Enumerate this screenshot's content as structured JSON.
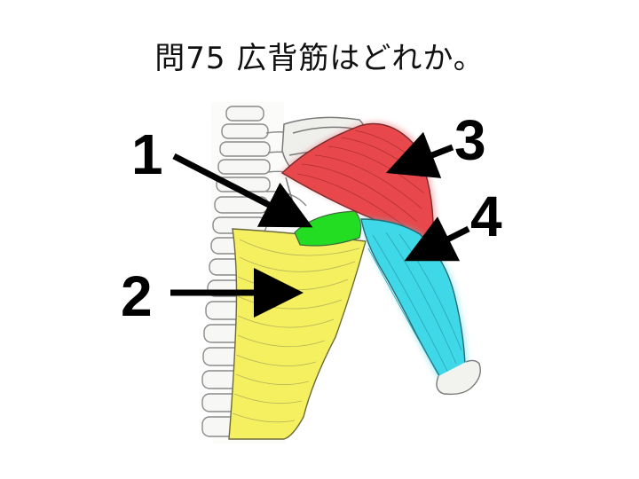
{
  "question": "問75 広背筋はどれか。",
  "labels": [
    {
      "id": "1",
      "text": "1"
    },
    {
      "id": "2",
      "text": "2"
    },
    {
      "id": "3",
      "text": "3"
    },
    {
      "id": "4",
      "text": "4"
    }
  ],
  "colors": {
    "region1": "#22dd22",
    "region2": "#f4f060",
    "region3": "#e8484c",
    "region4": "#3fd8e8",
    "arrow": "#000000",
    "sketch": "#8a8a8a"
  },
  "icons": [
    "spine-sketch",
    "scapula-sketch",
    "arrow-1",
    "arrow-2",
    "arrow-3",
    "arrow-4"
  ]
}
